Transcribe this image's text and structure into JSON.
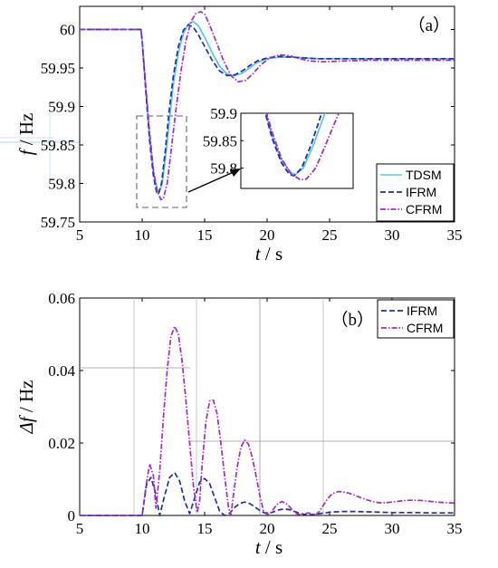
{
  "chart_data": [
    {
      "type": "line",
      "panel_label": "（a）",
      "xlabel_var": "t",
      "xlabel_unit": " / s",
      "ylabel_var": "f",
      "ylabel_unit": " / Hz",
      "xlim": [
        5,
        35
      ],
      "ylim": [
        59.75,
        60.03
      ],
      "xticks": [
        5,
        10,
        15,
        20,
        25,
        30,
        35
      ],
      "yticks": [
        59.75,
        59.8,
        59.85,
        59.9,
        59.95,
        60
      ],
      "ytick_labels": [
        "59.75",
        "59.8",
        "59.85",
        "59.9",
        "59.95",
        "60"
      ],
      "grid": false,
      "legend_position": "bottom-right",
      "series": [
        {
          "name": "TDSM",
          "color": "#5cc6f0",
          "style": "solid",
          "x": [
            5,
            9.9,
            10,
            10.3,
            10.6,
            10.9,
            11.2,
            11.35,
            11.6,
            11.9,
            12.2,
            12.5,
            12.9,
            13.3,
            13.7,
            14.1,
            14.5,
            15,
            15.6,
            16.2,
            16.8,
            17.4,
            18,
            18.6,
            19.2,
            20,
            21,
            22,
            23,
            24,
            26,
            28,
            30,
            35
          ],
          "y": [
            60,
            60,
            59.985,
            59.92,
            59.86,
            59.815,
            59.792,
            59.788,
            59.8,
            59.838,
            59.885,
            59.93,
            59.97,
            59.995,
            60.007,
            60.01,
            60.005,
            59.99,
            59.97,
            59.952,
            59.942,
            59.94,
            59.943,
            59.95,
            59.957,
            59.962,
            59.964,
            59.964,
            59.963,
            59.962,
            59.962,
            59.962,
            59.962,
            59.962
          ]
        },
        {
          "name": "IFRM",
          "color": "#1f2fa8",
          "style": "dashed",
          "x": [
            5,
            9.9,
            10,
            10.3,
            10.6,
            10.9,
            11.15,
            11.3,
            11.55,
            11.85,
            12.15,
            12.5,
            12.9,
            13.3,
            13.7,
            14.1,
            14.5,
            15,
            15.6,
            16.2,
            16.8,
            17.4,
            18,
            18.6,
            19.2,
            20,
            21,
            22,
            23,
            24,
            26,
            28,
            30,
            35
          ],
          "y": [
            60,
            60,
            59.985,
            59.918,
            59.855,
            59.81,
            59.789,
            59.786,
            59.8,
            59.842,
            59.893,
            59.94,
            59.978,
            59.999,
            60.006,
            60.003,
            59.993,
            59.978,
            59.96,
            59.946,
            59.94,
            59.941,
            59.946,
            59.953,
            59.959,
            59.963,
            59.965,
            59.964,
            59.963,
            59.962,
            59.962,
            59.962,
            59.962,
            59.962
          ]
        },
        {
          "name": "CFRM",
          "color": "#a229cc",
          "style": "dashdot",
          "x": [
            5,
            9.9,
            10,
            10.3,
            10.6,
            10.9,
            11.2,
            11.5,
            11.7,
            12,
            12.3,
            12.7,
            13.1,
            13.5,
            13.9,
            14.3,
            14.7,
            15,
            15.4,
            15.9,
            16.5,
            17.1,
            17.7,
            18.3,
            18.9,
            19.5,
            20.2,
            21,
            21.8,
            22.6,
            23.5,
            24.5,
            26,
            28,
            30,
            35
          ],
          "y": [
            60,
            60,
            59.985,
            59.925,
            59.866,
            59.818,
            59.79,
            59.779,
            59.78,
            59.8,
            59.84,
            59.895,
            59.945,
            59.985,
            60.01,
            60.021,
            60.023,
            60.02,
            60.006,
            59.985,
            59.96,
            59.94,
            59.932,
            59.934,
            59.943,
            59.954,
            59.963,
            59.967,
            59.966,
            59.962,
            59.959,
            59.958,
            59.959,
            59.96,
            59.96,
            59.96
          ]
        }
      ],
      "inset": {
        "xlim": [
          9.6,
          13.2
        ],
        "ylim": [
          59.763,
          59.9
        ],
        "yticks": [
          59.8,
          59.85,
          59.9
        ],
        "ytick_labels": [
          "59.8",
          "59.85",
          "59.9"
        ]
      }
    },
    {
      "type": "line",
      "panel_label": "（b）",
      "xlabel_var": "t",
      "xlabel_unit": " / s",
      "ylabel_var": "Δf",
      "ylabel_unit": " / Hz",
      "xlim": [
        5,
        35
      ],
      "ylim": [
        0,
        0.06
      ],
      "xticks": [
        5,
        10,
        15,
        20,
        25,
        30,
        35
      ],
      "yticks": [
        0,
        0.02,
        0.04,
        0.06
      ],
      "ytick_labels": [
        "0",
        "0.02",
        "0.04",
        "0.06"
      ],
      "grid": false,
      "legend_position": "top-right",
      "series": [
        {
          "name": "IFRM",
          "color": "#1f2fa8",
          "style": "dashed",
          "x": [
            5,
            10,
            10.35,
            10.7,
            11.05,
            11.4,
            11.8,
            12.2,
            12.6,
            13,
            13.4,
            13.8,
            14.2,
            14.6,
            15,
            15.4,
            15.8,
            16.2,
            16.6,
            17,
            17.4,
            17.8,
            18.2,
            18.6,
            19,
            19.4,
            19.8,
            20.2,
            20.6,
            21,
            21.4,
            21.8,
            22.2,
            22.6,
            23,
            23.4,
            23.8,
            24.2,
            24.6,
            25,
            26,
            27,
            28,
            29,
            30,
            31,
            32,
            33,
            34,
            35
          ],
          "y": [
            0,
            0,
            0.0085,
            0.0105,
            0.0065,
            0,
            0.0055,
            0.0105,
            0.0118,
            0.0095,
            0.004,
            0.0005,
            0.0048,
            0.0092,
            0.0102,
            0.0088,
            0.005,
            0.0012,
            0,
            0.0006,
            0.0022,
            0.0033,
            0.0037,
            0.0033,
            0.0024,
            0.0014,
            0.0007,
            0.0006,
            0.0011,
            0.0016,
            0.0018,
            0.0016,
            0.0011,
            0.0006,
            0.0003,
            0.0002,
            0.0003,
            0.0005,
            0.0007,
            0.0009,
            0.0011,
            0.0011,
            0.001,
            0.0009,
            0.0008,
            0.0008,
            0.0008,
            0.0007,
            0.0007,
            0.0007
          ]
        },
        {
          "name": "CFRM",
          "color": "#a229cc",
          "style": "dashdot",
          "x": [
            5,
            10,
            10.3,
            10.6,
            10.9,
            11.1,
            11.4,
            11.7,
            12,
            12.3,
            12.6,
            12.9,
            13.2,
            13.5,
            13.8,
            14.1,
            14.4,
            14.6,
            14.8,
            15.1,
            15.4,
            15.7,
            16,
            16.3,
            16.6,
            16.9,
            17.1,
            17.3,
            17.6,
            17.9,
            18.2,
            18.5,
            18.8,
            19.1,
            19.4,
            19.7,
            20,
            20.3,
            20.6,
            20.9,
            21.2,
            21.5,
            21.8,
            22.1,
            22.4,
            22.7,
            23,
            23.3,
            23.6,
            23.9,
            24.2,
            24.5,
            24.8,
            25.1,
            25.4,
            25.7,
            26,
            26.5,
            27,
            27.5,
            28,
            28.5,
            29,
            29.5,
            30,
            30.5,
            31,
            31.5,
            32,
            32.5,
            33,
            33.5,
            34,
            34.5,
            35
          ],
          "y": [
            0,
            0,
            0.008,
            0.0142,
            0.011,
            0.002,
            0.012,
            0.027,
            0.04,
            0.0493,
            0.0522,
            0.05,
            0.0425,
            0.0318,
            0.02,
            0.0082,
            0.0008,
            0.004,
            0.014,
            0.0258,
            0.0316,
            0.0318,
            0.028,
            0.02,
            0.0109,
            0.0025,
            0,
            0.0055,
            0.0132,
            0.0188,
            0.0208,
            0.0197,
            0.0162,
            0.0112,
            0.0058,
            0.0014,
            0.0002,
            0.0008,
            0.0022,
            0.0034,
            0.0038,
            0.0034,
            0.0024,
            0.0012,
            0.0004,
            0.0002,
            0.0005,
            0.0007,
            0.0004,
            0.0002,
            0.0012,
            0.0028,
            0.0044,
            0.0056,
            0.0063,
            0.0066,
            0.0065,
            0.0062,
            0.0056,
            0.0049,
            0.0043,
            0.0038,
            0.0035,
            0.0035,
            0.0037,
            0.0039,
            0.0041,
            0.0042,
            0.0042,
            0.0041,
            0.0039,
            0.0037,
            0.0036,
            0.0035,
            0.0034
          ]
        }
      ]
    }
  ]
}
